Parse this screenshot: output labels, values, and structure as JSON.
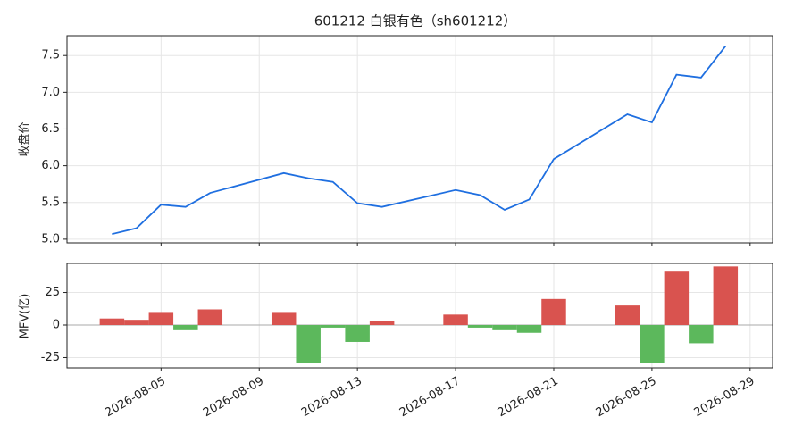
{
  "chart_data": [
    {
      "type": "line",
      "title": "601212 白银有色（sh601212）",
      "ylabel": "收盘价",
      "x": [
        "2026-08-03",
        "2026-08-04",
        "2026-08-05",
        "2026-08-06",
        "2026-08-07",
        "2026-08-10",
        "2026-08-11",
        "2026-08-12",
        "2026-08-13",
        "2026-08-14",
        "2026-08-17",
        "2026-08-18",
        "2026-08-19",
        "2026-08-20",
        "2026-08-21",
        "2026-08-24",
        "2026-08-25",
        "2026-08-26",
        "2026-08-27",
        "2026-08-28"
      ],
      "series": [
        {
          "color": "#1f6fe0",
          "values": [
            5.07,
            5.15,
            5.47,
            5.44,
            5.63,
            5.9,
            5.83,
            5.78,
            5.49,
            5.44,
            5.67,
            5.6,
            5.4,
            5.54,
            6.09,
            6.7,
            6.59,
            7.24,
            7.2,
            7.63
          ]
        }
      ],
      "xlim": [
        "2026-08-01T04:00",
        "2026-08-29T22:00"
      ],
      "ylim": [
        4.95,
        7.77
      ],
      "yticks": [
        {
          "value": 5,
          "label": "5.0"
        },
        5.5,
        {
          "value": 6,
          "label": "6.0"
        },
        6.5,
        {
          "value": 7,
          "label": "7.0"
        },
        7.5
      ],
      "grid": true
    },
    {
      "type": "bar",
      "ylabel": "MFV(亿)",
      "x": [
        "2026-08-03",
        "2026-08-04",
        "2026-08-05",
        "2026-08-06",
        "2026-08-07",
        "2026-08-10",
        "2026-08-11",
        "2026-08-12",
        "2026-08-13",
        "2026-08-14",
        "2026-08-17",
        "2026-08-18",
        "2026-08-19",
        "2026-08-20",
        "2026-08-21",
        "2026-08-24",
        "2026-08-25",
        "2026-08-26",
        "2026-08-27",
        "2026-08-28"
      ],
      "values": [
        5,
        4,
        10,
        -4,
        12,
        10,
        -29,
        -2,
        -13,
        3,
        8,
        -2,
        -4,
        -6,
        20,
        15,
        -29,
        41,
        -14,
        45
      ],
      "positive_color": "#d9534f",
      "negative_color": "#5cb85c",
      "xlim": [
        "2026-08-01T04:00",
        "2026-08-29T22:00"
      ],
      "xticks": [
        "2026-08-05",
        "2026-08-09",
        "2026-08-13",
        "2026-08-17",
        "2026-08-21",
        "2026-08-25",
        "2026-08-29"
      ],
      "ylim": [
        -32.9,
        47.3
      ],
      "yticks": [
        -25,
        0,
        25
      ],
      "grid": true
    }
  ]
}
